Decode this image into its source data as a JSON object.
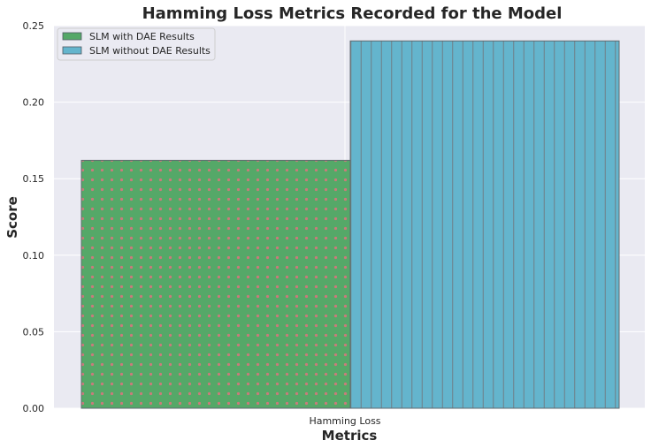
{
  "chart_data": {
    "type": "bar",
    "title": "Hamming Loss Metrics Recorded for the Model",
    "xlabel": "Metrics",
    "ylabel": "Score",
    "categories": [
      "Hamming Loss"
    ],
    "series": [
      {
        "name": "SLM with DAE Results",
        "values": [
          0.162
        ],
        "color": "#55a868",
        "hatch": "dots"
      },
      {
        "name": "SLM without DAE Results",
        "values": [
          0.24
        ],
        "color": "#64b5cd",
        "hatch": "vertical-lines"
      }
    ],
    "ylim": [
      0,
      0.25
    ],
    "yticks": [
      "0.00",
      "0.05",
      "0.10",
      "0.15",
      "0.20",
      "0.25"
    ],
    "grid": true,
    "legend": "top-left",
    "background": "#eaeaf2"
  }
}
